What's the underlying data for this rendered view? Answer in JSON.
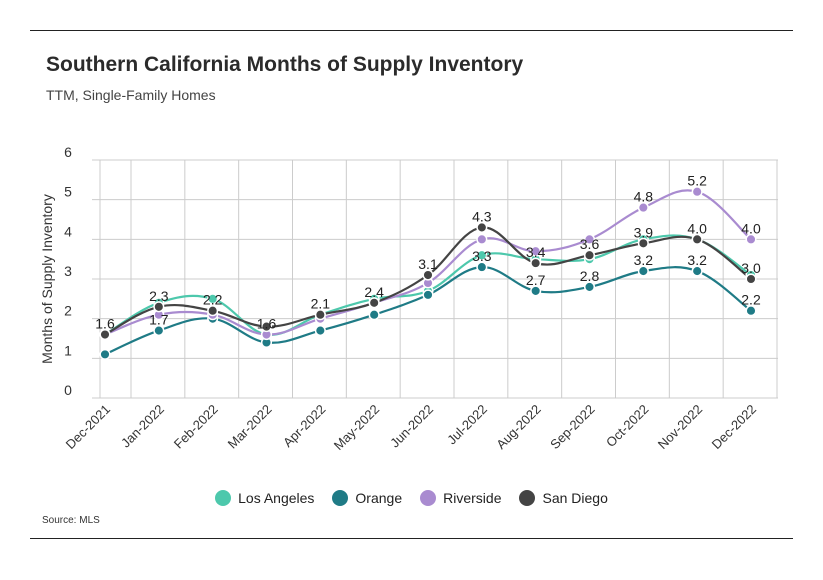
{
  "header": {
    "title": "Southern California Months of Supply Inventory",
    "subtitle": "TTM, Single-Family Homes"
  },
  "footer": {
    "source": "Source: MLS"
  },
  "colors": {
    "Los Angeles": "#4dc8ac",
    "Orange": "#1f7b86",
    "Riverside": "#a98bd0",
    "San Diego": "#444444",
    "grid": "#cccccc"
  },
  "chart_data": {
    "type": "line",
    "title": "Southern California Months of Supply Inventory",
    "subtitle": "TTM, Single-Family Homes",
    "xlabel": "",
    "ylabel": "Months of Supply Inventory",
    "ylim": [
      0,
      6
    ],
    "yticks": [
      0,
      1,
      2,
      3,
      4,
      5,
      6
    ],
    "grid": true,
    "legend": "bottom-center",
    "categories": [
      "Dec-2021",
      "Jan-2022",
      "Feb-2022",
      "Mar-2022",
      "Apr-2022",
      "May-2022",
      "Jun-2022",
      "Jul-2022",
      "Aug-2022",
      "Sep-2022",
      "Oct-2022",
      "Nov-2022",
      "Dec-2022"
    ],
    "series": [
      {
        "name": "Los Angeles",
        "values": [
          1.6,
          2.4,
          2.5,
          1.6,
          2.1,
          2.5,
          2.7,
          3.6,
          3.5,
          3.5,
          4.0,
          4.0,
          3.1
        ]
      },
      {
        "name": "Orange",
        "values": [
          1.1,
          1.7,
          2.0,
          1.4,
          1.7,
          2.1,
          2.6,
          3.3,
          2.7,
          2.8,
          3.2,
          3.2,
          2.2
        ]
      },
      {
        "name": "Riverside",
        "values": [
          1.6,
          2.1,
          2.1,
          1.6,
          2.0,
          2.4,
          2.9,
          4.0,
          3.7,
          4.0,
          4.8,
          5.2,
          4.0
        ]
      },
      {
        "name": "San Diego",
        "values": [
          1.6,
          2.3,
          2.2,
          1.8,
          2.1,
          2.4,
          3.1,
          4.3,
          3.4,
          3.6,
          3.9,
          4.0,
          3.0
        ]
      }
    ],
    "data_labels": [
      {
        "category": "Dec-2021",
        "text": "1.6"
      },
      {
        "category": "Jan-2022",
        "text": "2.3"
      },
      {
        "category": "Jan-2022",
        "text": "1.7"
      },
      {
        "category": "Feb-2022",
        "text": "2.2"
      },
      {
        "category": "Mar-2022",
        "text": "1.6"
      },
      {
        "category": "Apr-2022",
        "text": "2.1"
      },
      {
        "category": "May-2022",
        "text": "2.4"
      },
      {
        "category": "Jun-2022",
        "text": "3.1"
      },
      {
        "category": "Jul-2022",
        "text": "4.3"
      },
      {
        "category": "Jul-2022",
        "text": "3.3"
      },
      {
        "category": "Aug-2022",
        "text": "3.4"
      },
      {
        "category": "Aug-2022",
        "text": "2.7"
      },
      {
        "category": "Sep-2022",
        "text": "3.6"
      },
      {
        "category": "Sep-2022",
        "text": "2.8"
      },
      {
        "category": "Oct-2022",
        "text": "4.8"
      },
      {
        "category": "Oct-2022",
        "text": "3.9"
      },
      {
        "category": "Oct-2022",
        "text": "3.2"
      },
      {
        "category": "Nov-2022",
        "text": "5.2"
      },
      {
        "category": "Nov-2022",
        "text": "4.0"
      },
      {
        "category": "Nov-2022",
        "text": "3.2"
      },
      {
        "category": "Dec-2022",
        "text": "4.0"
      },
      {
        "category": "Dec-2022",
        "text": "3.0"
      },
      {
        "category": "Dec-2022",
        "text": "2.2"
      }
    ]
  }
}
